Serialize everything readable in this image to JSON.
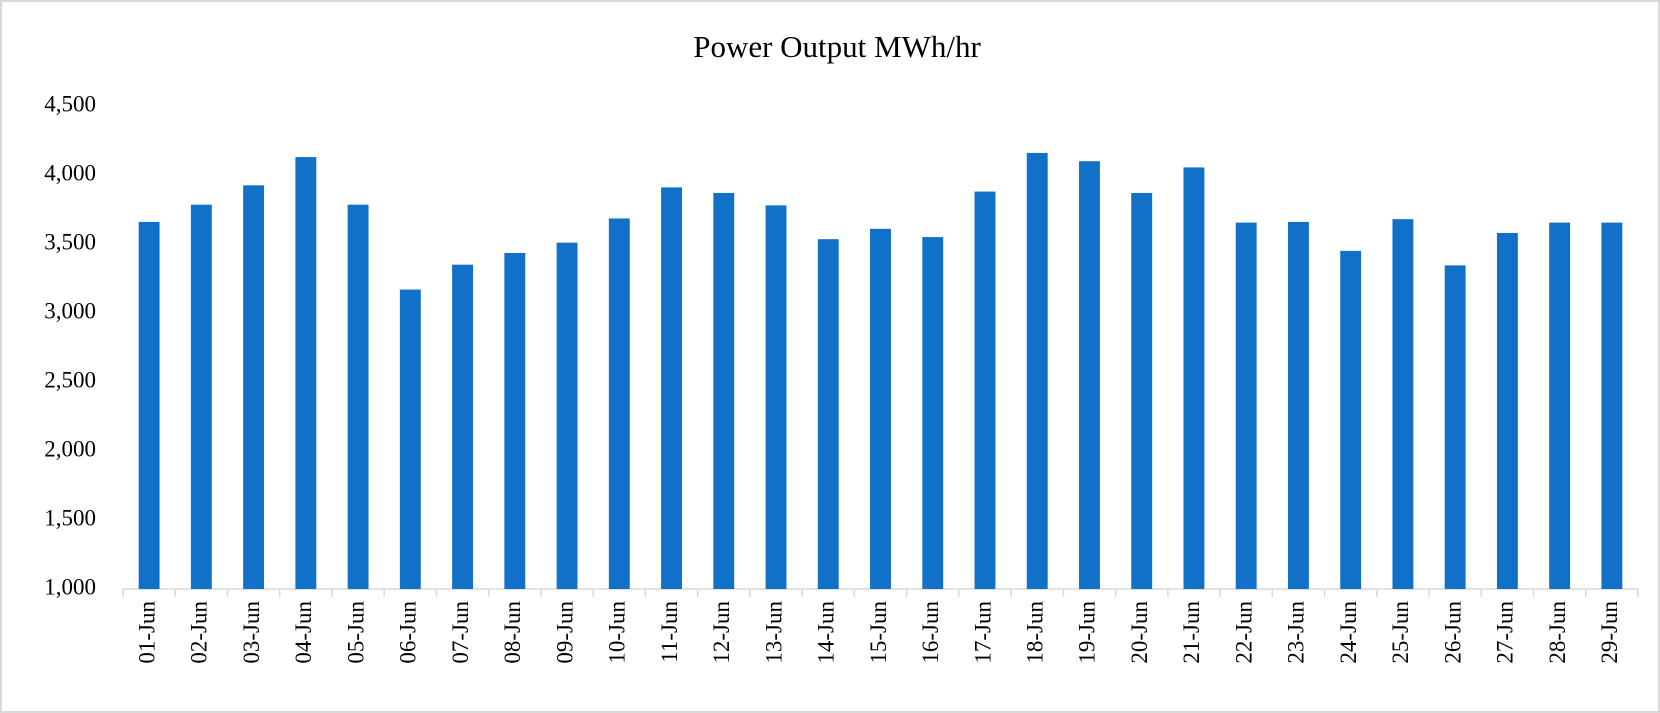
{
  "chart_data": {
    "type": "bar",
    "title": "Power Output MWh/hr",
    "categories": [
      "01-Jun",
      "02-Jun",
      "03-Jun",
      "04-Jun",
      "05-Jun",
      "06-Jun",
      "07-Jun",
      "08-Jun",
      "09-Jun",
      "10-Jun",
      "11-Jun",
      "12-Jun",
      "13-Jun",
      "14-Jun",
      "15-Jun",
      "16-Jun",
      "17-Jun",
      "18-Jun",
      "19-Jun",
      "20-Jun",
      "21-Jun",
      "22-Jun",
      "23-Jun",
      "24-Jun",
      "25-Jun",
      "26-Jun",
      "27-Jun",
      "28-Jun",
      "29-Jun"
    ],
    "values": [
      3660,
      3785,
      3925,
      4130,
      3785,
      3170,
      3350,
      3435,
      3510,
      3685,
      3910,
      3870,
      3780,
      3535,
      3610,
      3550,
      3880,
      4160,
      4100,
      3870,
      4055,
      3655,
      3660,
      3450,
      3680,
      3345,
      3580,
      3655,
      3655
    ],
    "color": "#1170c8",
    "ylim": [
      1000,
      4500
    ],
    "yticks": [
      {
        "value": 1000,
        "label": "1,000"
      },
      {
        "value": 1500,
        "label": "1,500"
      },
      {
        "value": 2000,
        "label": "2,000"
      },
      {
        "value": 2500,
        "label": "2,500"
      },
      {
        "value": 3000,
        "label": "3,000"
      },
      {
        "value": 3500,
        "label": "3,500"
      },
      {
        "value": 4000,
        "label": "4,000"
      },
      {
        "value": 4500,
        "label": "4,500"
      }
    ],
    "grid": false
  }
}
